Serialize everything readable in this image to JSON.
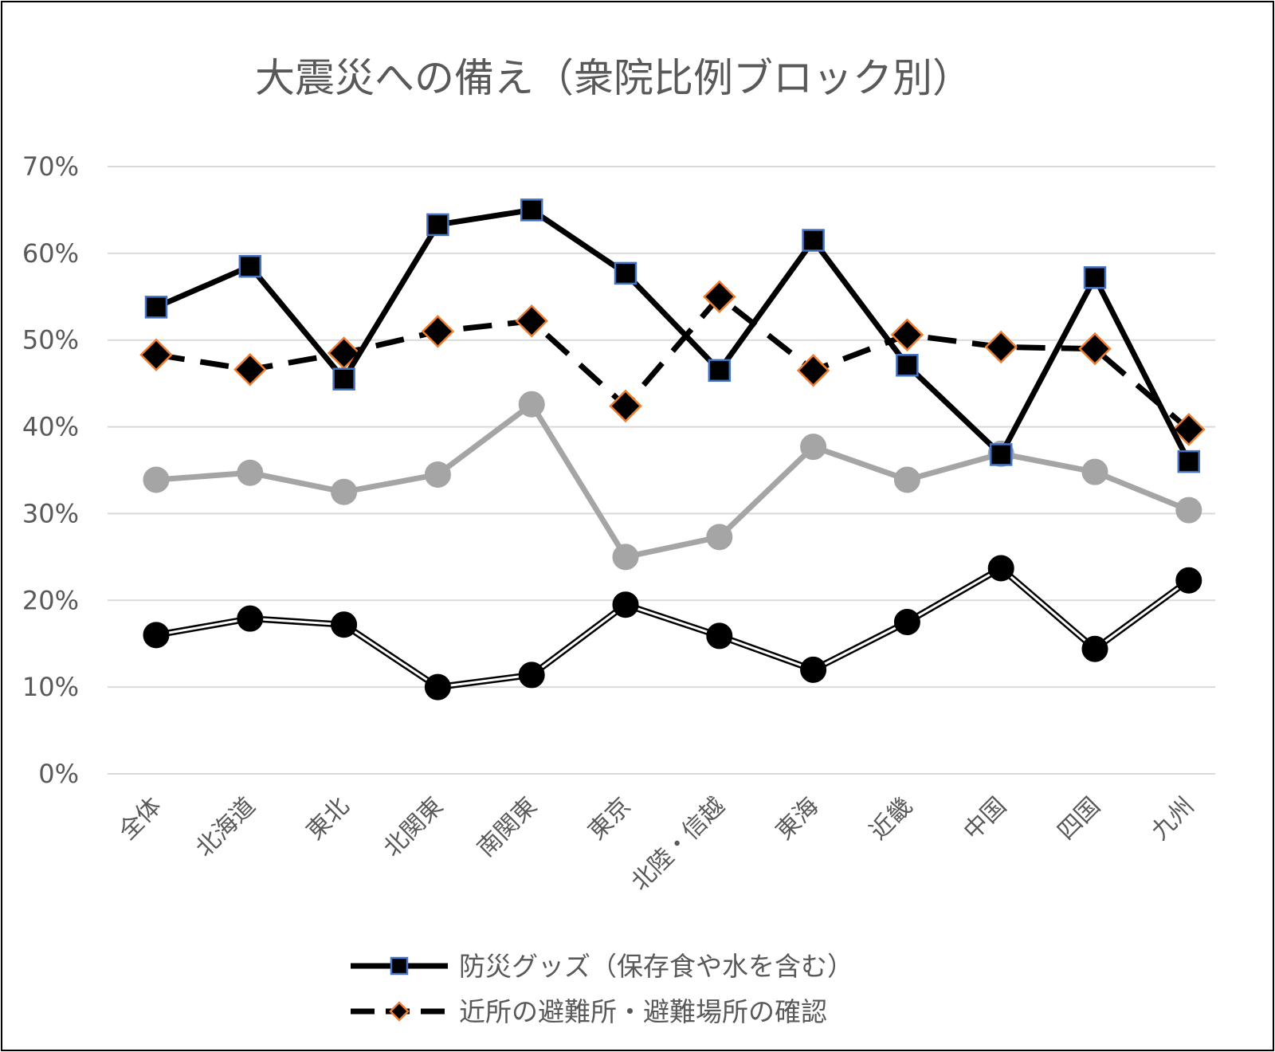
{
  "chart_data": {
    "type": "line",
    "title": "大震災への備え（衆院比例ブロック別）",
    "categories": [
      "全体",
      "北海道",
      "東北",
      "北関東",
      "南関東",
      "東京",
      "北陸・信越",
      "東海",
      "近畿",
      "中国",
      "四国",
      "九州"
    ],
    "ylim": [
      0,
      70
    ],
    "yticks": [
      "0%",
      "10%",
      "20%",
      "30%",
      "40%",
      "50%",
      "60%",
      "70%"
    ],
    "ytick_values": [
      0,
      10,
      20,
      30,
      40,
      50,
      60,
      70
    ],
    "grid": true,
    "legend_position": "bottom",
    "series": [
      {
        "name": "防災グッズ（保存食や水を含む）",
        "values": [
          53.8,
          58.5,
          45.5,
          63.3,
          65.0,
          57.7,
          46.5,
          61.5,
          47.1,
          36.8,
          57.2,
          36.0
        ],
        "color": "#000000",
        "marker": "square",
        "marker_fill": "#000000",
        "marker_edge": "#4472c4",
        "line_style": "solid",
        "in_legend": true
      },
      {
        "name": "近所の避難所・避難場所の確認",
        "values": [
          48.3,
          46.6,
          48.5,
          51.0,
          52.2,
          42.4,
          55.0,
          46.5,
          50.6,
          49.2,
          49.0,
          39.7
        ],
        "color": "#000000",
        "marker": "diamond",
        "marker_fill": "#000000",
        "marker_edge": "#ed7d31",
        "line_style": "dashed",
        "in_legend": true
      },
      {
        "name": "",
        "values": [
          33.9,
          34.7,
          32.5,
          34.5,
          42.6,
          25.0,
          27.3,
          37.7,
          33.9,
          36.9,
          34.8,
          30.4
        ],
        "color": "#a5a5a5",
        "marker": "circle",
        "marker_fill": "#a5a5a5",
        "marker_edge": "#a5a5a5",
        "line_style": "solid",
        "in_legend": false
      },
      {
        "name": "",
        "values": [
          16.0,
          17.9,
          17.2,
          10.0,
          11.4,
          19.5,
          15.9,
          12.0,
          17.5,
          23.7,
          14.4,
          22.3
        ],
        "color": "#000000",
        "marker": "circle",
        "marker_fill": "#000000",
        "marker_edge": "#000000",
        "line_style": "double",
        "in_legend": false
      }
    ]
  }
}
